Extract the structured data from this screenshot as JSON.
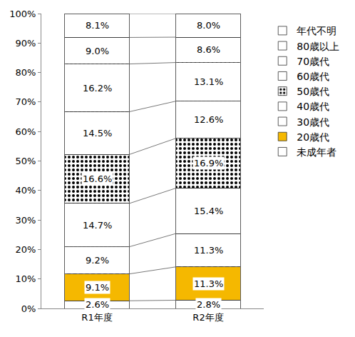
{
  "chart_data": {
    "type": "bar",
    "stacked": true,
    "data_labels": true,
    "grid": false,
    "legend": "right",
    "categories": [
      "R1年度",
      "R2年度"
    ],
    "series": [
      {
        "name": "未成年者",
        "color": "#4f81bd",
        "values": [
          2.6,
          2.8
        ],
        "value_labels": [
          "2.6%",
          "2.8%"
        ]
      },
      {
        "name": "20歳代",
        "color": "#f5b800",
        "values": [
          9.1,
          11.3
        ],
        "value_labels": [
          "9.1%",
          "11.3%"
        ]
      },
      {
        "name": "30歳代",
        "color": "#9bbb59",
        "values": [
          9.2,
          11.3
        ],
        "value_labels": [
          "9.2%",
          "11.3%"
        ]
      },
      {
        "name": "40歳代",
        "color": "#ff6666",
        "values": [
          14.7,
          15.4
        ],
        "value_labels": [
          "14.7%",
          "15.4%"
        ]
      },
      {
        "name": "50歳代",
        "color": "#ffffff",
        "values": [
          16.6,
          16.9
        ],
        "value_labels": [
          "16.6%",
          "16.9%"
        ]
      },
      {
        "name": "60歳代",
        "color": "#4f6228",
        "values": [
          14.5,
          12.6
        ],
        "value_labels": [
          "14.5%",
          "12.6%"
        ]
      },
      {
        "name": "70歳代",
        "color": "#9933cc",
        "values": [
          16.2,
          13.1
        ],
        "value_labels": [
          "16.2%",
          "13.1%"
        ]
      },
      {
        "name": "80歳以上",
        "color": "#33cccc",
        "values": [
          9.0,
          8.6
        ],
        "value_labels": [
          "9.0%",
          "8.6%"
        ]
      },
      {
        "name": "年代不明",
        "color": "#cc6633",
        "values": [
          8.1,
          8.0
        ],
        "value_labels": [
          "8.1%",
          "8.0%"
        ]
      }
    ],
    "ylim": [
      0,
      100
    ],
    "yticks": [
      {
        "value": 0,
        "label": "0%"
      },
      {
        "value": 10,
        "label": "10%"
      },
      {
        "value": 20,
        "label": "20%"
      },
      {
        "value": 30,
        "label": "30%"
      },
      {
        "value": 40,
        "label": "40%"
      },
      {
        "value": 50,
        "label": "50%"
      },
      {
        "value": 60,
        "label": "60%"
      },
      {
        "value": 70,
        "label": "70%"
      },
      {
        "value": 80,
        "label": "80%"
      },
      {
        "value": 90,
        "label": "90%"
      },
      {
        "value": 100,
        "label": "100%"
      }
    ]
  }
}
